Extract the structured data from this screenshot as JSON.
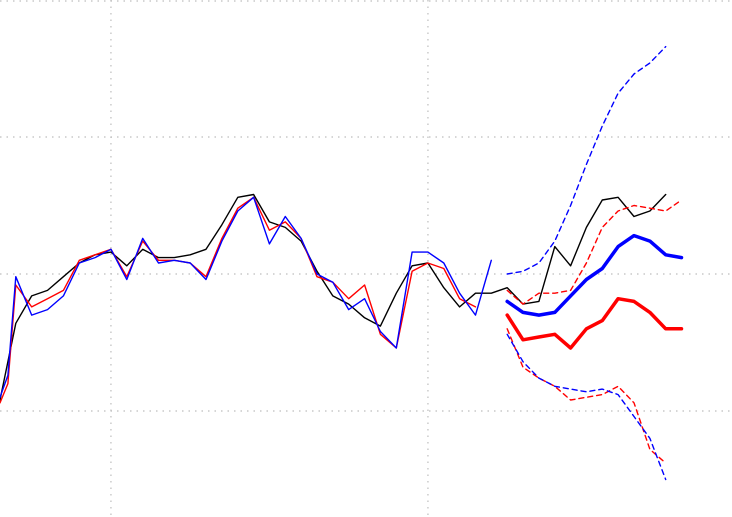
{
  "chart_data": {
    "type": "line",
    "title": "",
    "xlabel": "",
    "ylabel": "",
    "xlim": [
      0,
      44
    ],
    "ylim": [
      -4,
      3.5
    ],
    "x_gridlines": [
      7,
      27
    ],
    "y_gridlines": [
      -2.5,
      0,
      2.5
    ],
    "grid": "dotted",
    "colors": {
      "actual": "#000000",
      "red": "#ff0000",
      "blue": "#0000ff"
    },
    "series": [
      {
        "role": "actual",
        "color": "#000000",
        "style": "solid",
        "width": "thin",
        "x": [
          0,
          0.5,
          1,
          2,
          3,
          4,
          5,
          6,
          7,
          8,
          9,
          10,
          11,
          12,
          13,
          14,
          15,
          16,
          17,
          18,
          19,
          20,
          21,
          22,
          23,
          24,
          25,
          26,
          27,
          28,
          29,
          30,
          31,
          32,
          33,
          34,
          35,
          36,
          37,
          38,
          39,
          40,
          41,
          42,
          43,
          44
        ],
        "y": [
          -2.3,
          -1.6,
          -0.9,
          -0.4,
          -0.3,
          -0.05,
          0.2,
          0.35,
          0.4,
          0.15,
          0.45,
          0.3,
          0.3,
          0.35,
          0.45,
          0.9,
          1.4,
          1.45,
          0.95,
          0.85,
          0.6,
          0.05,
          -0.4,
          -0.55,
          -0.8,
          -0.95,
          -0.35,
          0.15,
          0.2,
          -0.25,
          -0.6,
          -0.35,
          -0.35,
          -0.25,
          -0.55,
          -0.5,
          0.5,
          0.15,
          0.85,
          1.35,
          1.4,
          1.05,
          1.15,
          1.45,
          null,
          null
        ]
      },
      {
        "role": "red-fit",
        "color": "#ff0000",
        "style": "solid",
        "width": "thin",
        "x": [
          0,
          0.5,
          1,
          2,
          3,
          4,
          5,
          6,
          7,
          8,
          9,
          10,
          11,
          12,
          13,
          14,
          15,
          16,
          17,
          18,
          19,
          20,
          21,
          22,
          23,
          24,
          25,
          26,
          27,
          28,
          29,
          30,
          31
        ],
        "y": [
          -2.35,
          -2.0,
          -0.2,
          -0.6,
          -0.45,
          -0.3,
          0.25,
          0.35,
          0.45,
          -0.05,
          0.6,
          0.25,
          0.25,
          0.2,
          -0.05,
          0.65,
          1.2,
          1.4,
          0.8,
          0.95,
          0.65,
          -0.05,
          -0.15,
          -0.45,
          -0.2,
          -1.1,
          -1.35,
          0.05,
          0.2,
          0.1,
          -0.45,
          -0.6,
          null
        ]
      },
      {
        "role": "blue-fit",
        "color": "#0000ff",
        "style": "solid",
        "width": "thin",
        "x": [
          0,
          0.5,
          1,
          2,
          3,
          4,
          5,
          6,
          7,
          8,
          9,
          10,
          11,
          12,
          13,
          14,
          15,
          16,
          17,
          18,
          19,
          20,
          21,
          22,
          23,
          24,
          25,
          26,
          27,
          28,
          29,
          30,
          31
        ],
        "y": [
          -2.25,
          -1.85,
          -0.05,
          -0.75,
          -0.65,
          -0.4,
          0.2,
          0.3,
          0.45,
          -0.1,
          0.65,
          0.2,
          0.25,
          0.2,
          -0.1,
          0.6,
          1.15,
          1.4,
          0.55,
          1.05,
          0.65,
          0.0,
          -0.15,
          -0.65,
          -0.45,
          -1.05,
          -1.35,
          0.4,
          0.4,
          0.2,
          -0.35,
          -0.75,
          0.25
        ]
      },
      {
        "role": "red-forecast",
        "color": "#ff0000",
        "style": "solid",
        "width": "thick",
        "x": [
          32,
          33,
          34,
          35,
          36,
          37,
          38,
          39,
          40,
          41,
          42,
          43,
          44
        ],
        "y": [
          -0.75,
          -1.2,
          -1.15,
          -1.1,
          -1.35,
          -1.0,
          -0.85,
          -0.45,
          -0.5,
          -0.7,
          -1.0,
          -1.0,
          null
        ]
      },
      {
        "role": "blue-forecast",
        "color": "#0000ff",
        "style": "solid",
        "width": "thick",
        "x": [
          32,
          33,
          34,
          35,
          36,
          37,
          38,
          39,
          40,
          41,
          42,
          43,
          44
        ],
        "y": [
          -0.5,
          -0.7,
          -0.75,
          -0.7,
          -0.4,
          -0.1,
          0.1,
          0.5,
          0.7,
          0.6,
          0.35,
          0.3,
          null
        ]
      },
      {
        "role": "red-upper",
        "color": "#ff0000",
        "style": "dashed",
        "width": "thin",
        "x": [
          32,
          33,
          34,
          35,
          36,
          37,
          38,
          39,
          40,
          41,
          42,
          43,
          44
        ],
        "y": [
          -0.3,
          -0.55,
          -0.35,
          -0.35,
          -0.3,
          0.2,
          0.85,
          1.15,
          1.25,
          1.2,
          1.15,
          1.35,
          null
        ]
      },
      {
        "role": "blue-upper",
        "color": "#0000ff",
        "style": "dashed",
        "width": "thin",
        "x": [
          32,
          33,
          34,
          35,
          36,
          37,
          38,
          39,
          40,
          41,
          42,
          43,
          44
        ],
        "y": [
          0.0,
          0.05,
          0.2,
          0.6,
          1.25,
          2.0,
          2.7,
          3.3,
          3.65,
          3.85,
          4.15,
          null,
          null
        ]
      },
      {
        "role": "red-lower",
        "color": "#ff0000",
        "style": "dashed",
        "width": "thin",
        "x": [
          32,
          33,
          34,
          35,
          36,
          37,
          38,
          39,
          40,
          41,
          42,
          43,
          44
        ],
        "y": [
          -1.0,
          -1.7,
          -1.9,
          -2.05,
          -2.3,
          -2.25,
          -2.2,
          -2.05,
          -2.35,
          -3.2,
          -3.45,
          null,
          null
        ]
      },
      {
        "role": "blue-lower",
        "color": "#0000ff",
        "style": "dashed",
        "width": "thin",
        "x": [
          32,
          33,
          34,
          35,
          36,
          37,
          38,
          39,
          40,
          41,
          42,
          43,
          44
        ],
        "y": [
          -1.1,
          -1.6,
          -1.9,
          -2.05,
          -2.1,
          -2.15,
          -2.1,
          -2.2,
          -2.6,
          -3.0,
          -3.75,
          null,
          null
        ]
      }
    ]
  }
}
